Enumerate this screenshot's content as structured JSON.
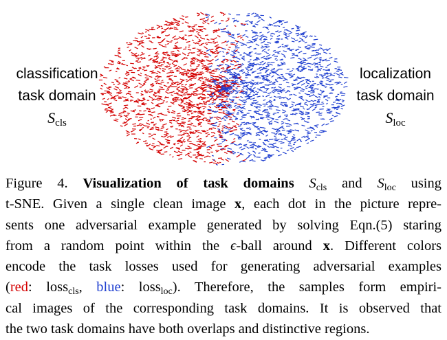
{
  "figure": {
    "left_label": {
      "line1": "classification",
      "line2": "task domain",
      "symbol": "S",
      "subscript": "cls"
    },
    "right_label": {
      "line1": "localization",
      "line2": "task domain",
      "symbol": "S",
      "subscript": "loc"
    },
    "colors": {
      "cls": "#d40000",
      "loc": "#1f3fd0"
    }
  },
  "caption": {
    "label": "Figure 4.",
    "title": "Visualization of task domains",
    "sym1": "S",
    "sub1": "cls",
    "and": "and",
    "sym2": "S",
    "sub2": "loc",
    "using": "using",
    "l2": "t-SNE. Given a single clean image",
    "x1": "x",
    "l2b": ", each dot in the picture repre-",
    "l3": "sents one adversarial example generated by solving Eqn.(5) staring",
    "l4a": "from a random point within the",
    "eps": "ϵ",
    "l4b": "-ball around",
    "x2": "x",
    "l4c": ". Different colors",
    "l5": "encode the task losses used for generating adversarial examples",
    "l6_open": "(",
    "red_word": "red",
    "l6_colon1": ":",
    "loss1": "loss",
    "loss1_sub": "cls",
    "l6_comma": ",",
    "blue_word": "blue",
    "l6_colon2": ":",
    "loss2": "loss",
    "loss2_sub": "loc",
    "l6_rest": "). Therefore, the samples form empiri-",
    "l7": "cal images of the corresponding task domains. It is observed that",
    "l8": "the two task domains have both overlaps and distinctive regions."
  }
}
